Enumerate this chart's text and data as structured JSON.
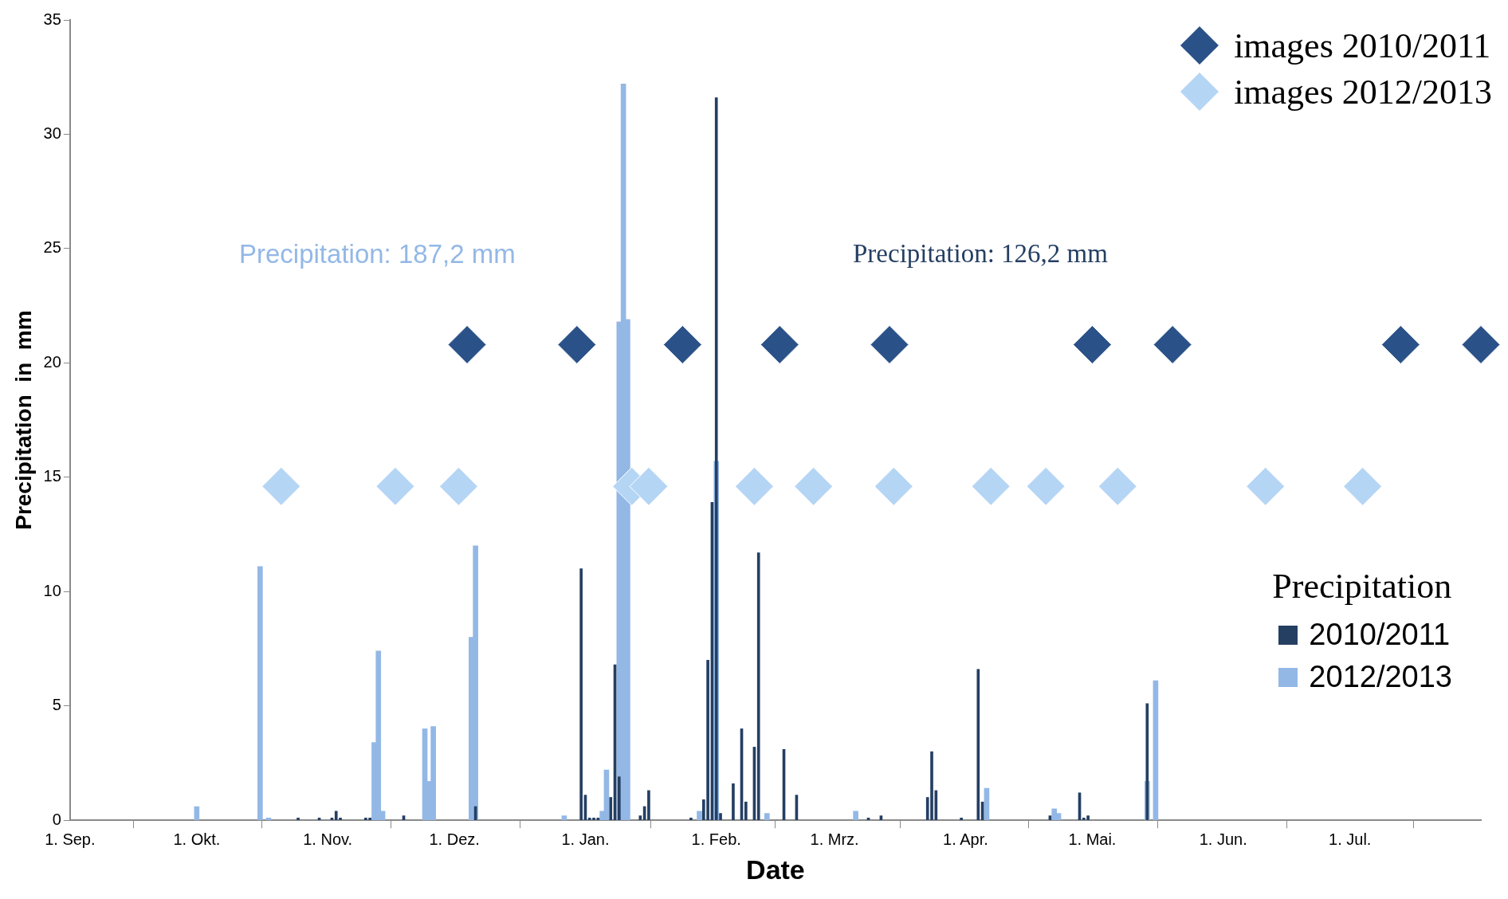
{
  "chart_data": {
    "type": "bar",
    "xlabel": "Date",
    "ylabel": "Precipitation  in  mm",
    "legend_title": "Precipitation",
    "legend": "right",
    "annotations": [
      "Precipitation: 187,2 mm",
      "Precipitation: 126,2 mm"
    ],
    "xlim": [
      "2010-09-01",
      "2011-08-01"
    ],
    "xticks": [
      {
        "value": "2010-09-01",
        "label": "1. Sep."
      },
      {
        "value": "2010-10-01",
        "label": "1. Okt."
      },
      {
        "value": "2010-11-01",
        "label": "1. Nov."
      },
      {
        "value": "2010-12-01",
        "label": "1. Dez."
      },
      {
        "value": "2011-01-01",
        "label": "1. Jan."
      },
      {
        "value": "2011-02-01",
        "label": "1. Feb."
      },
      {
        "value": "2011-03-01",
        "label": "1. Mrz."
      },
      {
        "value": "2011-04-01",
        "label": "1. Apr."
      },
      {
        "value": "2011-05-01",
        "label": "1. Mai."
      },
      {
        "value": "2011-06-01",
        "label": "1. Jun."
      },
      {
        "value": "2011-07-01",
        "label": "1. Jul."
      }
    ],
    "ylim": [
      0,
      35
    ],
    "yticks": [
      0,
      5,
      10,
      15,
      20,
      25,
      30,
      35
    ],
    "series": [
      {
        "name": "2010/2011",
        "color": "#253f63",
        "x": [
          "2010-10-25",
          "2010-10-30",
          "2010-11-02",
          "2010-11-03",
          "2010-11-04",
          "2010-11-10",
          "2010-11-11",
          "2010-11-19",
          "2010-12-06",
          "2010-12-31",
          "2011-01-01",
          "2011-01-02",
          "2011-01-03",
          "2011-01-04",
          "2011-01-07",
          "2011-01-08",
          "2011-01-09",
          "2011-01-14",
          "2011-01-15",
          "2011-01-16",
          "2011-01-26",
          "2011-01-29",
          "2011-01-30",
          "2011-01-31",
          "2011-02-01",
          "2011-02-02",
          "2011-02-05",
          "2011-02-07",
          "2011-02-08",
          "2011-02-10",
          "2011-02-11",
          "2011-02-17",
          "2011-02-20",
          "2011-03-09",
          "2011-03-12",
          "2011-03-23",
          "2011-03-24",
          "2011-03-25",
          "2011-03-31",
          "2011-04-04",
          "2011-04-05",
          "2011-04-21",
          "2011-04-28",
          "2011-04-29",
          "2011-04-30",
          "2011-05-14"
        ],
        "values": [
          0.1,
          0.1,
          0.1,
          0.4,
          0.1,
          0.1,
          0.1,
          0.2,
          0.6,
          11.0,
          1.1,
          0.1,
          0.1,
          0.1,
          1.0,
          6.8,
          1.9,
          0.2,
          0.6,
          1.3,
          0.1,
          0.9,
          7.0,
          13.9,
          31.6,
          0.3,
          1.6,
          4.0,
          0.8,
          3.2,
          11.7,
          3.1,
          1.1,
          0.1,
          0.2,
          1.0,
          3.0,
          1.3,
          0.1,
          6.6,
          0.8,
          0.2,
          1.2,
          0.1,
          0.2,
          5.1
        ]
      },
      {
        "name": "2012/2013",
        "color": "#93b8e6",
        "x": [
          "2010-10-01",
          "2010-10-16",
          "2010-10-18",
          "2010-11-12",
          "2010-11-13",
          "2010-11-14",
          "2010-11-24",
          "2010-11-25",
          "2010-11-26",
          "2010-12-05",
          "2010-12-06",
          "2010-12-27",
          "2011-01-05",
          "2011-01-06",
          "2011-01-09",
          "2011-01-10",
          "2011-01-11",
          "2011-01-28",
          "2011-02-01",
          "2011-02-13",
          "2011-03-06",
          "2011-04-06",
          "2011-04-22",
          "2011-04-23",
          "2011-05-14",
          "2011-05-16"
        ],
        "values": [
          0.6,
          11.1,
          0.1,
          3.4,
          7.4,
          0.4,
          4.0,
          1.7,
          4.1,
          8.0,
          12.0,
          0.2,
          0.4,
          2.2,
          21.8,
          32.2,
          21.9,
          0.4,
          15.7,
          0.3,
          0.4,
          1.4,
          0.5,
          0.3,
          1.7,
          6.1
        ]
      },
      {
        "name": "images 2010/2011",
        "type": "scatter",
        "marker": "diamond",
        "color": "#2b5288",
        "x": [
          "2010-12-04",
          "2010-12-30",
          "2011-01-24",
          "2011-02-16",
          "2011-03-14",
          "2011-05-01",
          "2011-05-20",
          "2011-07-13",
          "2011-08-01"
        ],
        "values": [
          20.8,
          20.8,
          20.8,
          20.8,
          20.8,
          20.8,
          20.8,
          20.8,
          20.8
        ]
      },
      {
        "name": "images 2012/2013",
        "type": "scatter",
        "marker": "diamond",
        "color": "#b5d5f5",
        "x": [
          "2010-10-21",
          "2010-11-17",
          "2010-12-02",
          "2011-01-12",
          "2011-01-16",
          "2011-02-10",
          "2011-02-24",
          "2011-03-15",
          "2011-04-07",
          "2011-04-20",
          "2011-05-07",
          "2011-06-11",
          "2011-07-04"
        ],
        "values": [
          14.6,
          14.6,
          14.6,
          14.6,
          14.6,
          14.6,
          14.6,
          14.6,
          14.6,
          14.6,
          14.6,
          14.6,
          14.6
        ]
      }
    ]
  }
}
